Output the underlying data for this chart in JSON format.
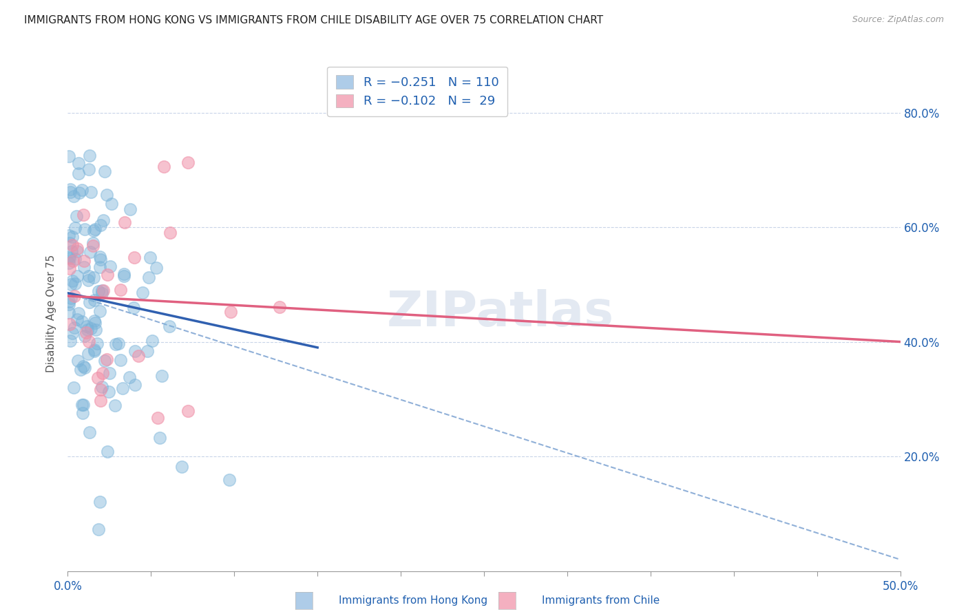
{
  "title": "IMMIGRANTS FROM HONG KONG VS IMMIGRANTS FROM CHILE DISABILITY AGE OVER 75 CORRELATION CHART",
  "source": "Source: ZipAtlas.com",
  "ylabel": "Disability Age Over 75",
  "xlim": [
    0.0,
    50.0
  ],
  "ylim": [
    0.0,
    90.0
  ],
  "y_ticks": [
    20.0,
    40.0,
    60.0,
    80.0
  ],
  "y_tick_labels": [
    "20.0%",
    "40.0%",
    "60.0%",
    "80.0%"
  ],
  "hk_color": "#7ab3d9",
  "chile_color": "#f090a8",
  "hk_line_color": "#3060b0",
  "chile_line_color": "#e06080",
  "dashed_line_color": "#90b0d8",
  "background_color": "#ffffff",
  "watermark_text": "ZIPatlas",
  "legend_label_hk": "R = −0.251   N = 110",
  "legend_label_chile": "R = −0.102   N =  29",
  "legend_color_hk": "#aecce8",
  "legend_color_chile": "#f4b0c0",
  "bottom_label_hk": "Immigrants from Hong Kong",
  "bottom_label_chile": "Immigrants from Chile",
  "hk_line_x0": 0.0,
  "hk_line_y0": 48.5,
  "hk_line_x1": 15.0,
  "hk_line_y1": 39.0,
  "chile_line_x0": 0.0,
  "chile_line_y0": 48.0,
  "chile_line_x1": 50.0,
  "chile_line_y1": 40.0,
  "dash_line_x0": 0.0,
  "dash_line_y0": 48.5,
  "dash_line_x1": 50.0,
  "dash_line_y1": 2.0
}
